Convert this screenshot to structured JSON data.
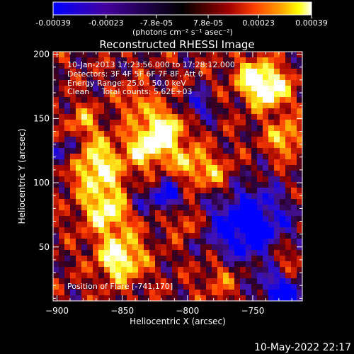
{
  "colorbar": {
    "ticks": [
      "-0.00039",
      "-0.00023",
      "-7.8e-05",
      "7.8e-05",
      "0.00023",
      "0.00039"
    ],
    "tick_values": [
      -0.00039,
      -0.00023,
      -7.8e-05,
      7.8e-05,
      0.00023,
      0.00039
    ],
    "range": [
      -0.00039,
      0.00039
    ],
    "unit_label": "(photons cm⁻² s⁻¹ asec⁻²)",
    "colors": [
      "#0000ff",
      "#4400a0",
      "#000000",
      "#a00000",
      "#ff4000",
      "#ffa000",
      "#ffff00",
      "#ffffff"
    ]
  },
  "chart_data": {
    "type": "heatmap",
    "title": "Reconstructed RHESSI Image",
    "xlabel": "Heliocentric X (arcsec)",
    "ylabel": "Heliocentric Y (arcsec)",
    "xlim": [
      -903,
      -712
    ],
    "ylim": [
      8,
      202
    ],
    "xticks": [
      -900,
      -850,
      -800,
      -750
    ],
    "yticks": [
      50,
      100,
      150,
      200
    ],
    "annotations": [
      "10-Jan-2013 17:23:56.000 to 17:28:12.000",
      "Detectors: 3F 4F 5F 6F 7F 8F, Att 0",
      "Energy Range: 25.0 - 50.0 keV",
      "Clean     Total counts: 5.62E+03"
    ],
    "position_label": "Position of Flare [-741,170]",
    "grid": false
  },
  "footer": {
    "timestamp": "10-May-2022 22:17"
  }
}
